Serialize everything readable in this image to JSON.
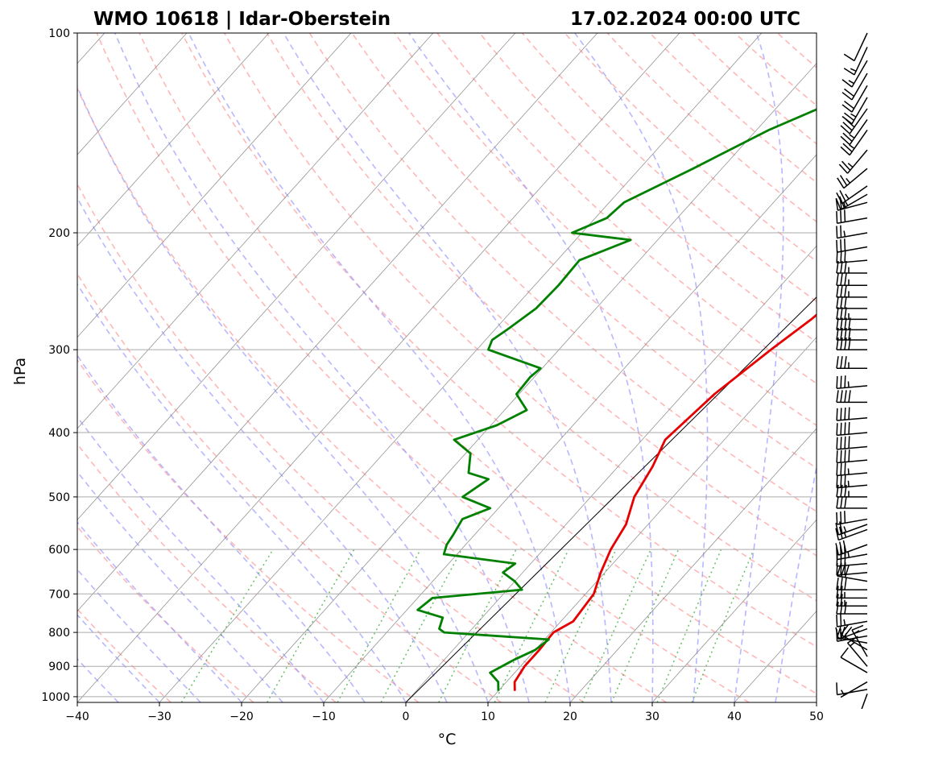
{
  "title_left": "WMO 10618 | Idar-Oberstein",
  "title_right": "17.02.2024 00:00 UTC",
  "colors": {
    "temperature": "#e60000",
    "dewpoint": "#008000",
    "dry_adiabat": "#ff9999",
    "moist_adiabat": "#9999ff",
    "mixing_ratio": "#33aa33",
    "isotherm": "#888888",
    "reference_line": "#000000",
    "grid": "#aaaaaa",
    "barb": "#000000"
  },
  "chart_data": {
    "type": "line",
    "subtype": "skew-T log-P sounding",
    "xlabel": "°C",
    "ylabel": "hPa",
    "xlim": [
      -40,
      50
    ],
    "ylim": [
      1020,
      100
    ],
    "x_ticks": [
      -40,
      -30,
      -20,
      -10,
      0,
      10,
      20,
      30,
      40,
      50
    ],
    "x_tick_labels": [
      "−40",
      "−30",
      "−20",
      "−10",
      "0",
      "10",
      "20",
      "30",
      "40",
      "50"
    ],
    "y_ticks": [
      100,
      200,
      300,
      400,
      500,
      600,
      700,
      800,
      900,
      1000
    ],
    "y_tick_labels": [
      "100",
      "200",
      "300",
      "400",
      "500",
      "600",
      "700",
      "800",
      "900",
      "1000"
    ],
    "series": [
      {
        "name": "temperature",
        "pressure_hPa": [
          980,
          950,
          900,
          850,
          800,
          770,
          700,
          650,
          600,
          550,
          500,
          450,
          410,
          350,
          300,
          270,
          240,
          225,
          200,
          190,
          180,
          160,
          150,
          130,
          120,
          110,
          105,
          100
        ],
        "temperature_C": [
          12,
          11,
          10.5,
          10.5,
          10.3,
          11.5,
          11,
          9.5,
          8.2,
          7.3,
          5.3,
          4.2,
          2.8,
          3.8,
          5.8,
          7.4,
          8.6,
          9.7,
          10.9,
          13.2,
          16.5,
          18.6,
          20.7,
          20.2,
          20.6,
          22.5,
          23.2,
          23
        ]
      },
      {
        "name": "dewpoint",
        "pressure_hPa": [
          980,
          950,
          920,
          880,
          850,
          820,
          800,
          790,
          760,
          740,
          710,
          690,
          670,
          650,
          630,
          610,
          590,
          570,
          540,
          520,
          500,
          470,
          460,
          430,
          410,
          390,
          370,
          350,
          330,
          320,
          300,
          290,
          280,
          260,
          240,
          220,
          205,
          200,
          190,
          180,
          160,
          140,
          120,
          100
        ],
        "dewpoint_C": [
          10,
          9,
          7,
          8.5,
          10,
          10.5,
          -3,
          -4,
          -4.8,
          -8.7,
          -8.2,
          1.8,
          0,
          -2.4,
          -1.9,
          -11.6,
          -12.3,
          -12.6,
          -13.2,
          -11,
          -15.6,
          -14.4,
          -17.5,
          -19.4,
          -22.9,
          -19.3,
          -17.3,
          -20.3,
          -20.5,
          -20.2,
          -28.6,
          -29.2,
          -28.5,
          -27.3,
          -27.1,
          -27.3,
          -23.3,
          -31.2,
          -28.6,
          -28.2,
          -23.5,
          -18.5,
          -10.8,
          -3.8
        ]
      }
    ],
    "reference_line": {
      "start": [
        0,
        1020
      ],
      "end": [
        50,
        250
      ]
    },
    "wind_barbs": {
      "pressure_hPa": [
        990,
        975,
        950,
        920,
        900,
        870,
        850,
        830,
        810,
        790,
        770,
        750,
        730,
        710,
        690,
        670,
        650,
        630,
        610,
        590,
        560,
        550,
        540,
        520,
        500,
        480,
        460,
        440,
        420,
        400,
        380,
        360,
        340,
        320,
        300,
        290,
        280,
        270,
        260,
        250,
        240,
        230,
        220,
        210,
        200,
        190,
        180,
        175,
        170,
        160,
        150,
        140,
        135,
        130,
        125,
        120,
        115,
        110,
        105,
        100
      ],
      "direction_deg": [
        200,
        260,
        240,
        300,
        320,
        330,
        300,
        280,
        260,
        250,
        260,
        270,
        270,
        270,
        270,
        280,
        265,
        265,
        260,
        250,
        250,
        250,
        260,
        270,
        270,
        265,
        265,
        265,
        265,
        265,
        265,
        270,
        265,
        270,
        270,
        270,
        270,
        270,
        270,
        270,
        270,
        270,
        265,
        260,
        260,
        260,
        255,
        240,
        235,
        230,
        220,
        215,
        215,
        215,
        210,
        210,
        210,
        210,
        205,
        205
      ],
      "speed_kt": [
        5,
        10,
        5,
        10,
        15,
        15,
        20,
        25,
        20,
        15,
        25,
        30,
        25,
        25,
        30,
        30,
        30,
        30,
        35,
        30,
        25,
        25,
        30,
        30,
        35,
        35,
        35,
        40,
        40,
        40,
        40,
        40,
        35,
        35,
        40,
        40,
        40,
        35,
        30,
        35,
        35,
        35,
        30,
        30,
        25,
        30,
        25,
        25,
        25,
        25,
        25,
        25,
        25,
        30,
        25,
        20,
        20,
        15,
        15,
        10
      ]
    }
  }
}
